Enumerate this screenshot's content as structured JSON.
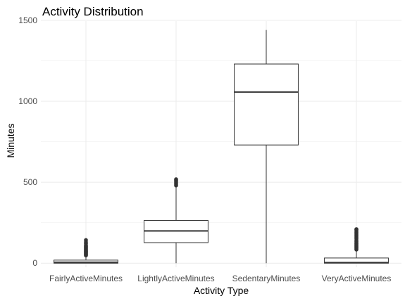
{
  "chart_data": {
    "type": "boxplot",
    "title": "Activity Distribution",
    "xlabel": "Activity Type",
    "ylabel": "Minutes",
    "ylim": [
      -25,
      1495
    ],
    "yticks": [
      0,
      500,
      1000,
      1500
    ],
    "ytick_labels": [
      "0",
      "500",
      "1000",
      "1500"
    ],
    "grid": true,
    "categories": [
      "FairlyActiveMinutes",
      "LightlyActiveMinutes",
      "SedentaryMinutes",
      "VeryActiveMinutes"
    ],
    "boxes": [
      {
        "category": "FairlyActiveMinutes",
        "min": 0,
        "q1": 0,
        "median": 6,
        "q3": 19,
        "max": 46,
        "outliers": [
          48,
          52,
          56,
          60,
          64,
          68,
          72,
          76,
          80,
          85,
          90,
          95,
          100,
          105,
          110,
          120,
          130,
          143
        ]
      },
      {
        "category": "LightlyActiveMinutes",
        "min": 0,
        "q1": 127,
        "median": 199,
        "q3": 264,
        "max": 470,
        "outliers": [
          480,
          488,
          496,
          505,
          512,
          518
        ]
      },
      {
        "category": "SedentaryMinutes",
        "min": 0,
        "q1": 730,
        "median": 1057,
        "q3": 1230,
        "max": 1440,
        "outliers": []
      },
      {
        "category": "VeryActiveMinutes",
        "min": 0,
        "q1": 0,
        "median": 4,
        "q3": 32,
        "max": 80,
        "outliers": [
          84,
          90,
          96,
          102,
          108,
          114,
          120,
          126,
          133,
          140,
          150,
          158,
          166,
          174,
          182,
          190,
          198,
          206,
          210
        ]
      }
    ]
  }
}
